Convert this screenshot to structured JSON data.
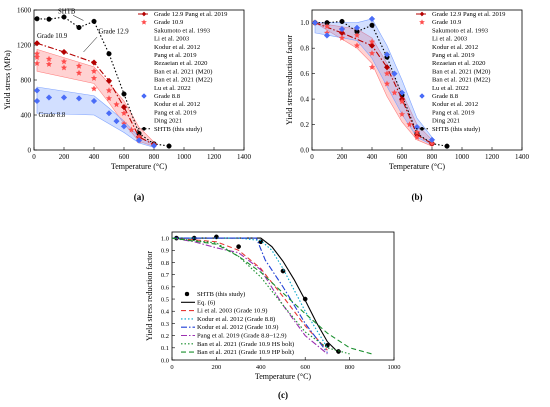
{
  "chart_data": [
    {
      "panel": "(a)",
      "type": "line",
      "xlabel": "Temperature (°C)",
      "ylabel": "Yield stress (MPa)",
      "xlim": [
        0,
        1400
      ],
      "ylim": [
        0,
        1600
      ],
      "xticks": [
        0,
        200,
        400,
        600,
        800,
        1000,
        1200,
        1400
      ],
      "yticks": [
        0,
        400,
        800,
        1200,
        1600
      ],
      "annotations": [
        "SHTB",
        "Grade 10.9",
        "Grade 12.9",
        "Grade 8.8"
      ],
      "legend": [
        {
          "label": "Grade 12.9 Pang et al. 2019",
          "marker": "diamond-line",
          "color": "#b40000"
        },
        {
          "label": "Grade 10.9",
          "marker": "star",
          "color": "#ff4d4d"
        },
        {
          "label": "Sakumoto et al. 1993",
          "marker": "none",
          "color": "#000000"
        },
        {
          "label": "Li et al. 2003",
          "marker": "none",
          "color": "#000000"
        },
        {
          "label": "Kodur et al. 2012",
          "marker": "none",
          "color": "#000000"
        },
        {
          "label": "Pang et al. 2019",
          "marker": "none",
          "color": "#000000"
        },
        {
          "label": "Rezaeian et al. 2020",
          "marker": "none",
          "color": "#000000"
        },
        {
          "label": "Ban et al. 2021 (M20)",
          "marker": "none",
          "color": "#000000"
        },
        {
          "label": "Ban et al. 2021 (M22)",
          "marker": "none",
          "color": "#000000"
        },
        {
          "label": "Lu et al. 2022",
          "marker": "none",
          "color": "#000000"
        },
        {
          "label": "Grade 8.8",
          "marker": "diamond",
          "color": "#4a6cf7"
        },
        {
          "label": "Kodur et al. 2012",
          "marker": "none",
          "color": "#000000"
        },
        {
          "label": "Pang et al. 2019",
          "marker": "none",
          "color": "#000000"
        },
        {
          "label": "Ding 2021",
          "marker": "none",
          "color": "#000000"
        },
        {
          "label": "SHTB (this study)",
          "marker": "dot-dash",
          "color": "#000000"
        }
      ],
      "series": [
        {
          "name": "SHTB (this study)",
          "color": "#000000",
          "style": "dotted",
          "marker": "circle",
          "x": [
            20,
            100,
            200,
            300,
            400,
            500,
            600,
            700,
            800,
            900
          ],
          "y": [
            1500,
            1495,
            1520,
            1400,
            1470,
            1100,
            640,
            190,
            70,
            45
          ]
        },
        {
          "name": "Grade 12.9 Pang et al. 2019",
          "color": "#b40000",
          "style": "dashdot",
          "marker": "diamond",
          "x": [
            20,
            200,
            400,
            500,
            600,
            700,
            800
          ],
          "y": [
            1220,
            1120,
            1000,
            790,
            490,
            150,
            60
          ]
        },
        {
          "name": "Grade 10.9",
          "color": "#ff4d4d",
          "style": "points",
          "marker": "star",
          "x": [
            20,
            20,
            20,
            100,
            100,
            200,
            200,
            300,
            300,
            400,
            400,
            400,
            500,
            500,
            550,
            600,
            600,
            650,
            700,
            700,
            800
          ],
          "y": [
            1100,
            1060,
            990,
            1040,
            980,
            1010,
            940,
            960,
            880,
            900,
            820,
            700,
            680,
            590,
            520,
            420,
            300,
            230,
            150,
            110,
            60
          ]
        },
        {
          "name": "Grade 8.8",
          "color": "#4a6cf7",
          "style": "points",
          "marker": "diamond",
          "x": [
            20,
            20,
            100,
            200,
            300,
            400,
            500,
            550,
            600,
            700,
            800
          ],
          "y": [
            680,
            560,
            600,
            600,
            590,
            560,
            420,
            330,
            270,
            110,
            50
          ]
        }
      ],
      "bands": [
        {
          "name": "Grade 10.9 range",
          "color": "#ff7f7f",
          "x": [
            20,
            400,
            500,
            600,
            700,
            800
          ],
          "upper": [
            1150,
            950,
            760,
            560,
            260,
            90
          ],
          "lower": [
            900,
            760,
            540,
            300,
            100,
            40
          ]
        },
        {
          "name": "Grade 8.8 range",
          "color": "#7fa3ff",
          "x": [
            20,
            400,
            500,
            600,
            700,
            800
          ],
          "upper": [
            720,
            620,
            480,
            330,
            150,
            60
          ],
          "lower": [
            420,
            400,
            300,
            200,
            80,
            30
          ]
        }
      ]
    },
    {
      "panel": "(b)",
      "type": "line",
      "xlabel": "Temperature (°C)",
      "ylabel": "Yield stress reduction factor",
      "xlim": [
        0,
        1400
      ],
      "ylim": [
        0,
        1.1
      ],
      "xticks": [
        0,
        200,
        400,
        600,
        800,
        1000,
        1200,
        1400
      ],
      "yticks": [
        0.0,
        0.2,
        0.4,
        0.6,
        0.8,
        1.0
      ],
      "legend": [
        {
          "label": "Grade 12.9 Pang et al. 2019",
          "marker": "diamond-line",
          "color": "#b40000"
        },
        {
          "label": "Grade 10.9",
          "marker": "star",
          "color": "#ff4d4d"
        },
        {
          "label": "Sakumoto et al. 1993",
          "marker": "none",
          "color": "#000000"
        },
        {
          "label": "Li et al. 2003",
          "marker": "none",
          "color": "#000000"
        },
        {
          "label": "Kodur et al. 2012",
          "marker": "none",
          "color": "#000000"
        },
        {
          "label": "Pang et al. 2019",
          "marker": "none",
          "color": "#000000"
        },
        {
          "label": "Rezaeian et al. 2020",
          "marker": "none",
          "color": "#000000"
        },
        {
          "label": "Ban et al. 2021 (M20)",
          "marker": "none",
          "color": "#000000"
        },
        {
          "label": "Ban et al. 2021 (M22)",
          "marker": "none",
          "color": "#000000"
        },
        {
          "label": "Lu et al. 2022",
          "marker": "none",
          "color": "#000000"
        },
        {
          "label": "Grade 8.8",
          "marker": "diamond",
          "color": "#4a6cf7"
        },
        {
          "label": "Kodur et al. 2012",
          "marker": "none",
          "color": "#000000"
        },
        {
          "label": "Pang et al. 2019",
          "marker": "none",
          "color": "#000000"
        },
        {
          "label": "Ding 2021",
          "marker": "none",
          "color": "#000000"
        },
        {
          "label": "SHTB (this study)",
          "marker": "dot-dash",
          "color": "#000000"
        }
      ],
      "series": [
        {
          "name": "SHTB (this study)",
          "color": "#000000",
          "style": "dotted",
          "marker": "circle",
          "x": [
            20,
            100,
            200,
            300,
            400,
            500,
            600,
            700,
            800,
            900
          ],
          "y": [
            1.0,
            1.0,
            1.01,
            0.93,
            0.98,
            0.73,
            0.43,
            0.13,
            0.05,
            0.03
          ]
        },
        {
          "name": "Grade 12.9 Pang et al. 2019",
          "color": "#b40000",
          "style": "dashdot",
          "marker": "diamond",
          "x": [
            20,
            200,
            400,
            500,
            600,
            700,
            800
          ],
          "y": [
            1.0,
            0.92,
            0.82,
            0.65,
            0.4,
            0.12,
            0.05
          ]
        },
        {
          "name": "Grade 10.9",
          "color": "#ff4d4d",
          "style": "points",
          "marker": "star",
          "x": [
            20,
            100,
            100,
            200,
            200,
            300,
            300,
            400,
            400,
            400,
            500,
            500,
            550,
            600,
            600,
            650,
            700,
            700,
            800
          ],
          "y": [
            1.0,
            0.97,
            0.92,
            0.95,
            0.88,
            0.9,
            0.82,
            0.85,
            0.76,
            0.65,
            0.6,
            0.52,
            0.45,
            0.38,
            0.28,
            0.2,
            0.14,
            0.1,
            0.05
          ]
        },
        {
          "name": "Grade 8.8",
          "color": "#4a6cf7",
          "style": "points",
          "marker": "diamond",
          "x": [
            20,
            100,
            200,
            300,
            400,
            500,
            550,
            600,
            700,
            800
          ],
          "y": [
            1.0,
            0.9,
            0.95,
            0.96,
            1.03,
            0.75,
            0.6,
            0.45,
            0.18,
            0.08
          ]
        }
      ],
      "bands": [
        {
          "name": "Grade 10.9 range",
          "color": "#ff7f7f",
          "x": [
            20,
            300,
            400,
            500,
            600,
            700,
            800
          ],
          "upper": [
            1.0,
            0.95,
            0.88,
            0.68,
            0.45,
            0.2,
            0.08
          ],
          "lower": [
            1.0,
            0.8,
            0.68,
            0.42,
            0.22,
            0.08,
            0.03
          ]
        },
        {
          "name": "Grade 8.8 range",
          "color": "#7fa3ff",
          "x": [
            20,
            300,
            400,
            500,
            600,
            700,
            800
          ],
          "upper": [
            1.0,
            1.0,
            1.03,
            0.82,
            0.55,
            0.25,
            0.1
          ],
          "lower": [
            0.92,
            0.86,
            0.72,
            0.5,
            0.28,
            0.1,
            0.04
          ]
        }
      ]
    },
    {
      "panel": "(c)",
      "type": "line",
      "xlabel": "Temperature (°C)",
      "ylabel": "Yield stress reduction factor",
      "xlim": [
        0,
        1000
      ],
      "ylim": [
        0,
        1.05
      ],
      "xticks": [
        0,
        200,
        400,
        600,
        800,
        1000
      ],
      "yticks": [
        0.0,
        0.1,
        0.2,
        0.3,
        0.4,
        0.5,
        0.6,
        0.7,
        0.8,
        0.9,
        1.0
      ],
      "legend": [
        {
          "label": "SHTB (this study)",
          "marker": "circle",
          "color": "#000000"
        },
        {
          "label": "Eq. (6)",
          "marker": "solid",
          "color": "#000000"
        },
        {
          "label": "Li et al. 2003 (Grade 10.9)",
          "marker": "dashed",
          "color": "#e53935"
        },
        {
          "label": "Kodur et al. 2012 (Grade 8.8)",
          "marker": "dotted",
          "color": "#00a6c8"
        },
        {
          "label": "Kodur et al. 2012 (Grade 10.9)",
          "marker": "dashdot",
          "color": "#1f3fd6"
        },
        {
          "label": "Pang et al. 2019 (Grade 8.8~12.9)",
          "marker": "dashdot",
          "color": "#9b2fb0"
        },
        {
          "label": "Ban et al. 2021 (Grade 10.9 HS bolt)",
          "marker": "dotted",
          "color": "#1a8f2e"
        },
        {
          "label": "Ban et al. 2021 (Grade 10.9 HP bolt)",
          "marker": "dashed",
          "color": "#1a8f2e"
        }
      ],
      "series": [
        {
          "name": "SHTB (this study)",
          "color": "#000000",
          "style": "points",
          "marker": "circle",
          "x": [
            20,
            100,
            200,
            300,
            400,
            500,
            600,
            700,
            750
          ],
          "y": [
            1.0,
            1.0,
            1.01,
            0.93,
            0.97,
            0.73,
            0.5,
            0.12,
            0.07
          ]
        },
        {
          "name": "Eq. (6)",
          "color": "#000000",
          "style": "solid",
          "marker": "none",
          "x": [
            0,
            100,
            200,
            300,
            400,
            450,
            500,
            550,
            600,
            650,
            700,
            750
          ],
          "y": [
            1.0,
            1.0,
            1.0,
            1.0,
            1.0,
            0.93,
            0.81,
            0.66,
            0.49,
            0.31,
            0.15,
            0.06
          ]
        },
        {
          "name": "Li et al. 2003 (Grade 10.9)",
          "color": "#e53935",
          "style": "dashed",
          "marker": "none",
          "x": [
            0,
            200,
            300,
            400,
            500,
            600,
            700
          ],
          "y": [
            1.0,
            0.97,
            0.9,
            0.75,
            0.52,
            0.28,
            0.08
          ]
        },
        {
          "name": "Kodur et al. 2012 (Grade 8.8)",
          "color": "#00a6c8",
          "style": "dotted",
          "marker": "none",
          "x": [
            0,
            200,
            300,
            400,
            450,
            500,
            600,
            700
          ],
          "y": [
            1.0,
            1.0,
            1.0,
            0.98,
            0.9,
            0.75,
            0.4,
            0.1
          ]
        },
        {
          "name": "Kodur et al. 2012 (Grade 10.9)",
          "color": "#1f3fd6",
          "style": "dashdot",
          "marker": "none",
          "x": [
            0,
            200,
            300,
            380,
            420,
            500,
            600,
            700
          ],
          "y": [
            1.0,
            1.0,
            1.0,
            1.0,
            0.82,
            0.6,
            0.3,
            0.06
          ]
        },
        {
          "name": "Pang et al. 2019 (Grade 8.8~12.9)",
          "color": "#9b2fb0",
          "style": "dashdot",
          "marker": "none",
          "x": [
            0,
            100,
            200,
            300,
            400,
            500,
            600,
            700
          ],
          "y": [
            1.0,
            0.97,
            0.92,
            0.88,
            0.74,
            0.45,
            0.2,
            0.05
          ]
        },
        {
          "name": "Ban et al. 2021 (Grade 10.9 HS bolt)",
          "color": "#1a8f2e",
          "style": "dotted",
          "marker": "none",
          "x": [
            0,
            200,
            300,
            400,
            500,
            600,
            700,
            800
          ],
          "y": [
            1.0,
            0.96,
            0.85,
            0.68,
            0.45,
            0.23,
            0.1,
            0.05
          ]
        },
        {
          "name": "Ban et al. 2021 (Grade 10.9 HP bolt)",
          "color": "#1a8f2e",
          "style": "dashed",
          "marker": "none",
          "x": [
            0,
            200,
            300,
            400,
            500,
            600,
            700,
            800,
            900
          ],
          "y": [
            1.0,
            0.95,
            0.85,
            0.72,
            0.55,
            0.38,
            0.22,
            0.1,
            0.05
          ]
        }
      ]
    }
  ]
}
